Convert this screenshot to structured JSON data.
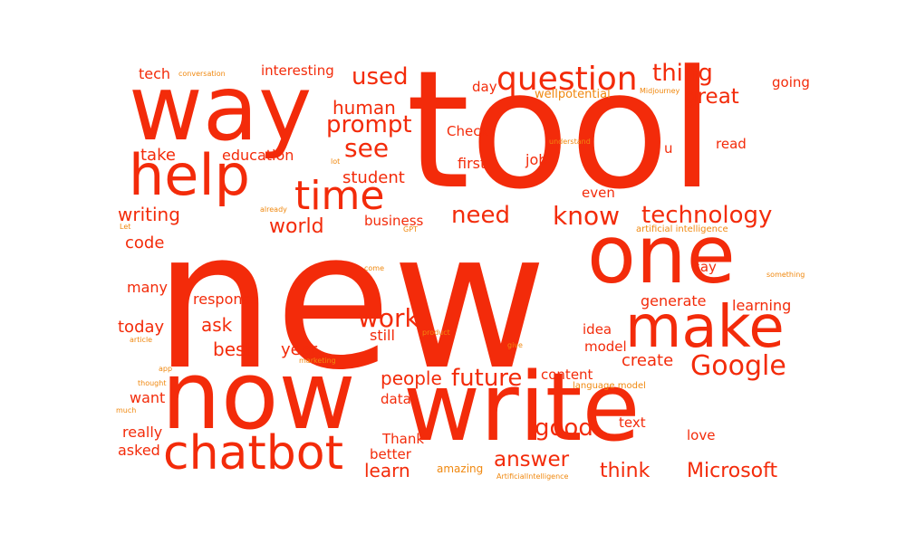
{
  "colors": {
    "primary": "#f32b0a",
    "secondary": "#f0880f",
    "background": "#ffffff"
  },
  "words": [
    {
      "text": "new",
      "weight": 100,
      "orientation": "horizontal"
    },
    {
      "text": "tool",
      "weight": 62,
      "orientation": "horizontal"
    },
    {
      "text": "now",
      "weight": 48,
      "orientation": "horizontal"
    },
    {
      "text": "write",
      "weight": 46,
      "orientation": "horizontal"
    },
    {
      "text": "way",
      "weight": 44,
      "orientation": "horizontal"
    },
    {
      "text": "one",
      "weight": 34,
      "orientation": "horizontal"
    },
    {
      "text": "make",
      "weight": 27,
      "orientation": "horizontal"
    },
    {
      "text": "help",
      "weight": 26,
      "orientation": "horizontal"
    },
    {
      "text": "chatbot",
      "weight": 24,
      "orientation": "horizontal"
    },
    {
      "text": "time",
      "weight": 19,
      "orientation": "horizontal"
    },
    {
      "text": "question",
      "weight": 15,
      "orientation": "horizontal"
    },
    {
      "text": "Google",
      "weight": 12,
      "orientation": "horizontal"
    },
    {
      "text": "know",
      "weight": 12,
      "orientation": "horizontal"
    },
    {
      "text": "work",
      "weight": 12,
      "orientation": "horizontal"
    },
    {
      "text": "see",
      "weight": 12,
      "orientation": "horizontal"
    },
    {
      "text": "prompt",
      "weight": 11,
      "orientation": "horizontal"
    },
    {
      "text": "thing",
      "weight": 11,
      "orientation": "horizontal"
    },
    {
      "text": "used",
      "weight": 11,
      "orientation": "horizontal"
    },
    {
      "text": "technology",
      "weight": 11,
      "orientation": "horizontal"
    },
    {
      "text": "good",
      "weight": 11,
      "orientation": "horizontal"
    },
    {
      "text": "need",
      "weight": 11,
      "orientation": "horizontal"
    },
    {
      "text": "future",
      "weight": 11,
      "orientation": "horizontal"
    },
    {
      "text": "great",
      "weight": 10,
      "orientation": "horizontal"
    },
    {
      "text": "answer",
      "weight": 10,
      "orientation": "horizontal"
    },
    {
      "text": "think",
      "weight": 10,
      "orientation": "horizontal"
    },
    {
      "text": "Microsoft",
      "weight": 10,
      "orientation": "horizontal"
    },
    {
      "text": "world",
      "weight": 9,
      "orientation": "horizontal"
    },
    {
      "text": "human",
      "weight": 8,
      "orientation": "horizontal"
    },
    {
      "text": "writing",
      "weight": 8,
      "orientation": "horizontal"
    },
    {
      "text": "learn",
      "weight": 8,
      "orientation": "horizontal"
    },
    {
      "text": "best",
      "weight": 8,
      "orientation": "horizontal"
    },
    {
      "text": "people",
      "weight": 8,
      "orientation": "horizontal"
    },
    {
      "text": "ask",
      "weight": 8,
      "orientation": "horizontal"
    },
    {
      "text": "student",
      "weight": 8,
      "orientation": "horizontal"
    },
    {
      "text": "take",
      "weight": 7,
      "orientation": "horizontal"
    },
    {
      "text": "today",
      "weight": 7,
      "orientation": "horizontal"
    },
    {
      "text": "education",
      "weight": 6,
      "orientation": "horizontal"
    },
    {
      "text": "code",
      "weight": 7,
      "orientation": "horizontal"
    },
    {
      "text": "response",
      "weight": 6,
      "orientation": "horizontal"
    },
    {
      "text": "interesting",
      "weight": 6,
      "orientation": "horizontal"
    },
    {
      "text": "tech",
      "weight": 6,
      "orientation": "horizontal"
    },
    {
      "text": "year",
      "weight": 7,
      "orientation": "horizontal"
    },
    {
      "text": "create",
      "weight": 7,
      "orientation": "horizontal"
    },
    {
      "text": "generate",
      "weight": 6,
      "orientation": "horizontal"
    },
    {
      "text": "learning",
      "weight": 6,
      "orientation": "horizontal"
    },
    {
      "text": "many",
      "weight": 6,
      "orientation": "horizontal"
    },
    {
      "text": "want",
      "weight": 6,
      "orientation": "horizontal"
    },
    {
      "text": "really",
      "weight": 6,
      "orientation": "horizontal"
    },
    {
      "text": "asked",
      "weight": 6,
      "orientation": "horizontal"
    },
    {
      "text": "business",
      "weight": 6,
      "orientation": "horizontal"
    },
    {
      "text": "still",
      "weight": 6,
      "orientation": "horizontal"
    },
    {
      "text": "data",
      "weight": 6,
      "orientation": "horizontal"
    },
    {
      "text": "Thank",
      "weight": 6,
      "orientation": "horizontal"
    },
    {
      "text": "better",
      "weight": 6,
      "orientation": "horizontal"
    },
    {
      "text": "Check",
      "weight": 6,
      "orientation": "horizontal"
    },
    {
      "text": "first",
      "weight": 6,
      "orientation": "horizontal"
    },
    {
      "text": "job",
      "weight": 6,
      "orientation": "horizontal"
    },
    {
      "text": "even",
      "weight": 6,
      "orientation": "horizontal"
    },
    {
      "text": "read",
      "weight": 6,
      "orientation": "horizontal"
    },
    {
      "text": "going",
      "weight": 6,
      "orientation": "horizontal"
    },
    {
      "text": "day",
      "weight": 6,
      "orientation": "horizontal"
    },
    {
      "text": "u",
      "weight": 6,
      "orientation": "horizontal"
    },
    {
      "text": "say",
      "weight": 6,
      "orientation": "horizontal"
    },
    {
      "text": "idea",
      "weight": 6,
      "orientation": "horizontal"
    },
    {
      "text": "model",
      "weight": 6,
      "orientation": "horizontal"
    },
    {
      "text": "content",
      "weight": 6,
      "orientation": "horizontal"
    },
    {
      "text": "text",
      "weight": 6,
      "orientation": "horizontal"
    },
    {
      "text": "love",
      "weight": 6,
      "orientation": "horizontal"
    },
    {
      "text": "amazing",
      "weight": 5,
      "orientation": "horizontal"
    },
    {
      "text": "wellpotential",
      "weight": 5,
      "orientation": "horizontal"
    },
    {
      "text": "language model",
      "weight": 4,
      "orientation": "horizontal"
    },
    {
      "text": "artificial intelligence",
      "weight": 4,
      "orientation": "horizontal"
    },
    {
      "text": "Midjourney",
      "weight": 3,
      "orientation": "horizontal"
    },
    {
      "text": "understand",
      "weight": 3,
      "orientation": "horizontal"
    },
    {
      "text": "conversation",
      "weight": 3,
      "orientation": "horizontal"
    },
    {
      "text": "already",
      "weight": 3,
      "orientation": "horizontal"
    },
    {
      "text": "lot",
      "weight": 3,
      "orientation": "horizontal"
    },
    {
      "text": "Let",
      "weight": 3,
      "orientation": "horizontal"
    },
    {
      "text": "GPT",
      "weight": 3,
      "orientation": "horizontal"
    },
    {
      "text": "come",
      "weight": 3,
      "orientation": "horizontal"
    },
    {
      "text": "product",
      "weight": 3,
      "orientation": "horizontal"
    },
    {
      "text": "article",
      "weight": 3,
      "orientation": "horizontal"
    },
    {
      "text": "marketing",
      "weight": 3,
      "orientation": "horizontal"
    },
    {
      "text": "app",
      "weight": 3,
      "orientation": "horizontal"
    },
    {
      "text": "thought",
      "weight": 3,
      "orientation": "horizontal"
    },
    {
      "text": "much",
      "weight": 3,
      "orientation": "horizontal"
    },
    {
      "text": "give",
      "weight": 3,
      "orientation": "horizontal"
    },
    {
      "text": "something",
      "weight": 3,
      "orientation": "horizontal"
    },
    {
      "text": "ArtificialIntelligence",
      "weight": 3,
      "orientation": "horizontal"
    }
  ]
}
